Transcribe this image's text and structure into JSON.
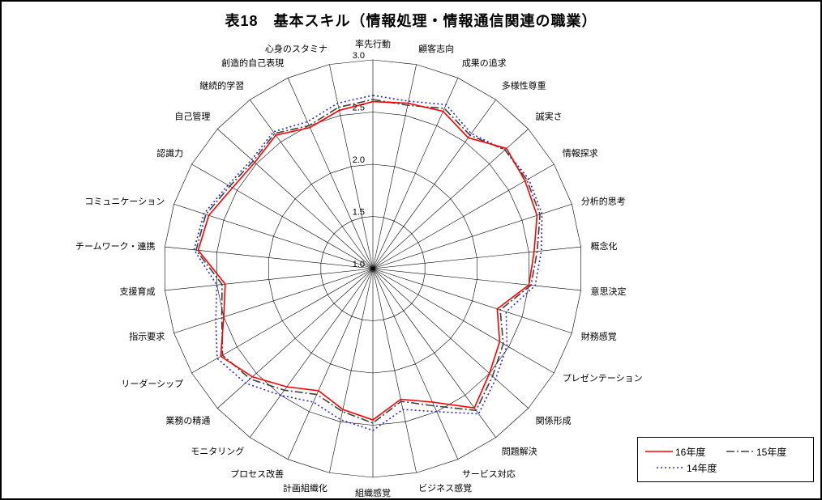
{
  "page": {
    "title": "表18　基本スキル（情報処理・情報通信関連の職業）"
  },
  "chart_data": {
    "type": "radar",
    "title": "表18　基本スキル（情報処理・情報通信関連の職業）",
    "categories": [
      "率先行動",
      "顧客志向",
      "成果の追求",
      "多様性尊重",
      "誠実さ",
      "情報探求",
      "分析的思考",
      "概念化",
      "意思決定",
      "財務感覚",
      "プレゼンテーション",
      "関係形成",
      "問題解決",
      "サービス対応",
      "ビジネス感覚",
      "組織感覚",
      "計画組織化",
      "プロセス改善",
      "モニタリング",
      "業務の精通",
      "リーダーシップ",
      "指示要求",
      "支援育成",
      "チームワーク・連携",
      "コミュニケーション",
      "認識力",
      "自己管理",
      "継続的学習",
      "創造的自己表現",
      "心身のスタミナ"
    ],
    "series": [
      {
        "name": "16年度",
        "color": "#FF0000",
        "line_style": "solid",
        "values": [
          2.6,
          2.62,
          2.65,
          2.55,
          2.72,
          2.68,
          2.65,
          2.55,
          2.5,
          2.25,
          2.4,
          2.5,
          2.65,
          2.4,
          2.28,
          2.45,
          2.38,
          2.28,
          2.4,
          2.55,
          2.68,
          2.5,
          2.42,
          2.68,
          2.65,
          2.55,
          2.52,
          2.58,
          2.48,
          2.55
        ]
      },
      {
        "name": "15年度",
        "color": "#404040",
        "line_style": "dashdot",
        "values": [
          2.62,
          2.6,
          2.68,
          2.58,
          2.7,
          2.7,
          2.68,
          2.58,
          2.52,
          2.28,
          2.44,
          2.54,
          2.68,
          2.44,
          2.3,
          2.48,
          2.4,
          2.32,
          2.44,
          2.58,
          2.66,
          2.52,
          2.45,
          2.7,
          2.68,
          2.58,
          2.54,
          2.6,
          2.5,
          2.58
        ]
      },
      {
        "name": "14年度",
        "color": "#2929CC",
        "line_style": "dotted",
        "values": [
          2.66,
          2.64,
          2.72,
          2.6,
          2.7,
          2.72,
          2.7,
          2.62,
          2.56,
          2.34,
          2.48,
          2.58,
          2.72,
          2.5,
          2.38,
          2.55,
          2.48,
          2.4,
          2.5,
          2.64,
          2.72,
          2.58,
          2.5,
          2.72,
          2.7,
          2.6,
          2.56,
          2.62,
          2.54,
          2.62
        ]
      }
    ],
    "radial_axis": {
      "min": 1.0,
      "max": 3.0,
      "ticks": [
        "1.0",
        "1.5",
        "2.0",
        "2.5",
        "3.0"
      ]
    },
    "grid": true,
    "grid_color": "#000000",
    "legend_position": "bottom-right"
  }
}
